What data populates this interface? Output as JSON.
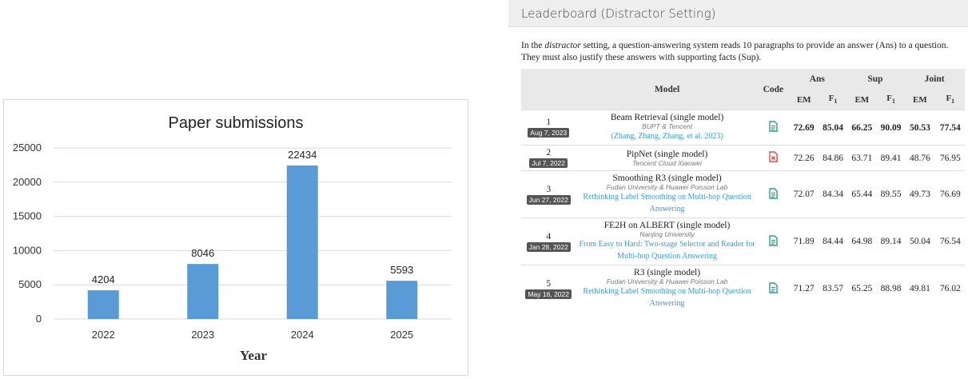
{
  "chart_data": {
    "type": "bar",
    "title": "Paper submissions",
    "xlabel": "Year",
    "ylabel": "",
    "categories": [
      "2022",
      "2023",
      "2024",
      "2025"
    ],
    "values": [
      4204,
      8046,
      22434,
      5593
    ],
    "ylim": [
      0,
      25000
    ],
    "yticks": [
      0,
      5000,
      10000,
      15000,
      20000,
      25000
    ],
    "grid": true,
    "bar_color": "#5b9bd5",
    "grid_color": "#d9d9d9"
  },
  "leaderboard": {
    "title": "Leaderboard (Distractor Setting)",
    "description": {
      "pre": "In the ",
      "emph": "distractor",
      "post": " setting, a question-answering system reads 10 paragraphs to provide an answer (Ans) to a question. They must also justify these answers with supporting facts (Sup)."
    },
    "headers": {
      "model": "Model",
      "code": "Code",
      "groups": [
        "Ans",
        "Sup",
        "Joint"
      ],
      "sub": [
        "EM",
        "F1",
        "EM",
        "F1",
        "EM",
        "F1"
      ]
    },
    "rows": [
      {
        "rank": "1",
        "date": "Aug 7, 2023",
        "model": "Beam Retrieval (single model)",
        "institution": "BUPT & Tencent",
        "paper": "(Zhang, Zhang, Zhang, et al. 2023)",
        "code_icon": "document-icon",
        "code_color": "#2a9d8f",
        "values": [
          "72.69",
          "85.04",
          "66.25",
          "90.09",
          "50.53",
          "77.54"
        ],
        "bold": true
      },
      {
        "rank": "2",
        "date": "Jul 7, 2022",
        "model": "PipNet (single model)",
        "institution": "Tencent Cloud Xiaowei",
        "paper": "",
        "code_icon": "no-code-icon",
        "code_color": "#e04848",
        "values": [
          "72.26",
          "84.86",
          "63.71",
          "89.41",
          "48.76",
          "76.95"
        ],
        "bold": false
      },
      {
        "rank": "3",
        "date": "Jun 27, 2022",
        "model": "Smoothing R3 (single model)",
        "institution": "Fudan University & Huawei Poisson Lab",
        "paper": "Rethinking Label Smoothing on Multi-hop Question Answering",
        "code_icon": "document-icon",
        "code_color": "#2a9d8f",
        "values": [
          "72.07",
          "84.34",
          "65.44",
          "89.55",
          "49.73",
          "76.69"
        ],
        "bold": false
      },
      {
        "rank": "4",
        "date": "Jan 28, 2022",
        "model": "FE2H on ALBERT (single model)",
        "institution": "Nanjing University",
        "paper": "From Easy to Hard: Two-stage Selector and Reader for Multi-hop Question Answering",
        "code_icon": "document-icon",
        "code_color": "#2a9d8f",
        "values": [
          "71.89",
          "84.44",
          "64.98",
          "89.14",
          "50.04",
          "76.54"
        ],
        "bold": false
      },
      {
        "rank": "5",
        "date": "May 16, 2022",
        "model": "R3 (single model)",
        "institution": "Fudan University & Huawei Poisson Lab",
        "paper": "Rethinking Label Smoothing on Multi-hop Question Answering",
        "code_icon": "document-icon",
        "code_color": "#2a9d8f",
        "values": [
          "71.27",
          "83.57",
          "65.25",
          "88.98",
          "49.81",
          "76.02"
        ],
        "bold": false
      }
    ]
  }
}
